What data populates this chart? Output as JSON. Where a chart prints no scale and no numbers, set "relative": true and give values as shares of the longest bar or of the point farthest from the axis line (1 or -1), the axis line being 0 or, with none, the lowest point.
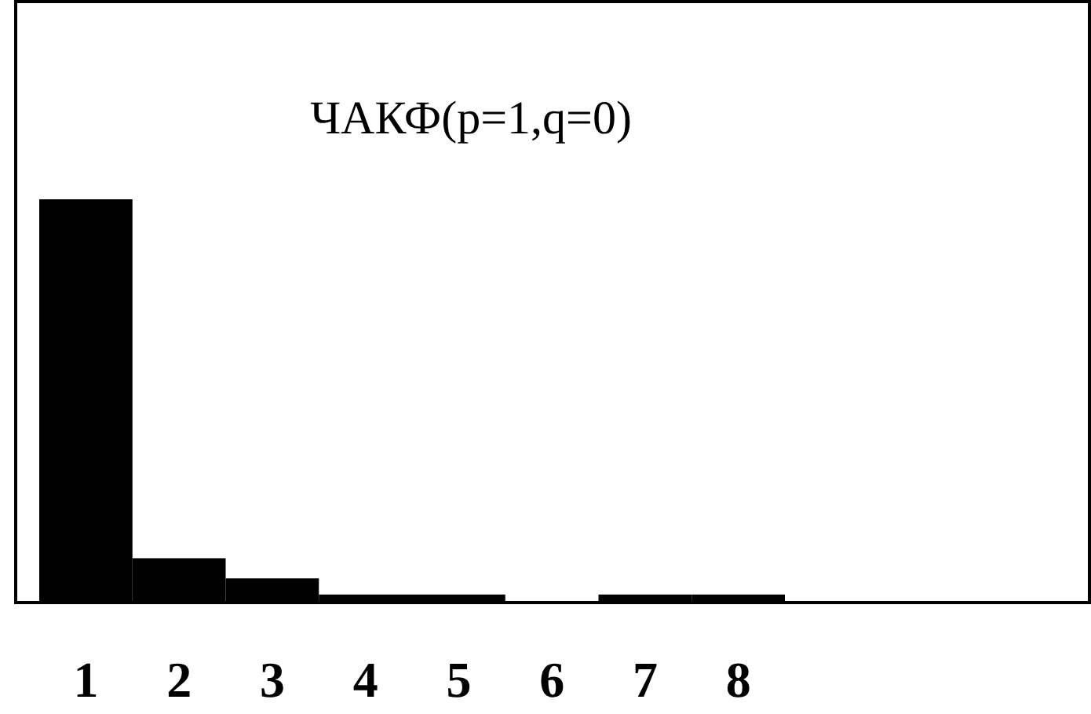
{
  "chart_data": {
    "type": "bar",
    "title": "ЧАКФ(p=1,q=0)",
    "relative": true,
    "categories": [
      "1",
      "2",
      "3",
      "4",
      "5",
      "6",
      "7",
      "8"
    ],
    "values": [
      1,
      0.11,
      0.06,
      0.02,
      0.02,
      0,
      0.02,
      0.02
    ],
    "color": "#000000"
  }
}
